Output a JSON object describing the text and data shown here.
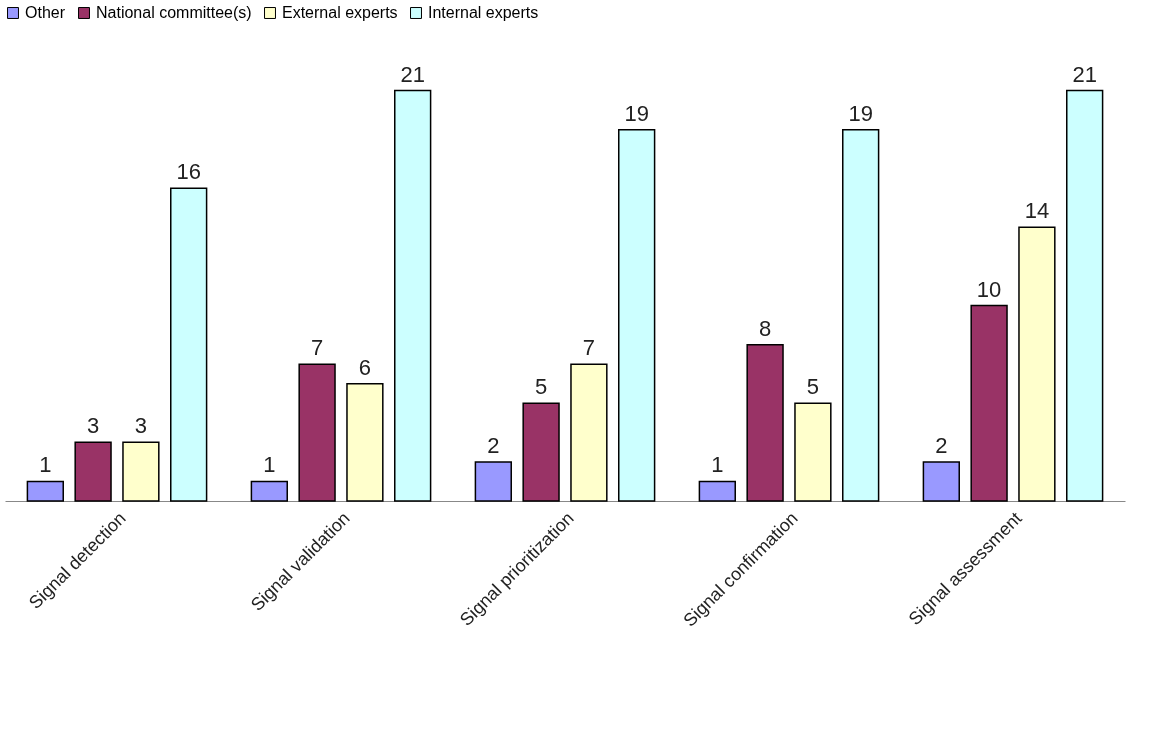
{
  "chart_data": {
    "type": "bar",
    "categories": [
      "Signal detection",
      "Signal validation",
      "Signal prioritization",
      "Signal confirmation",
      "Signal assessment"
    ],
    "series": [
      {
        "name": "Other",
        "color": "#9999ff",
        "values": [
          1,
          1,
          2,
          1,
          2
        ]
      },
      {
        "name": "National committee(s)",
        "color": "#993366",
        "values": [
          3,
          7,
          5,
          8,
          10
        ]
      },
      {
        "name": "External experts",
        "color": "#ffffcc",
        "values": [
          3,
          6,
          7,
          5,
          14
        ]
      },
      {
        "name": "Internal experts",
        "color": "#ccffff",
        "values": [
          16,
          21,
          19,
          19,
          21
        ]
      }
    ],
    "data_labels": true,
    "legend": "top",
    "grid": false
  }
}
